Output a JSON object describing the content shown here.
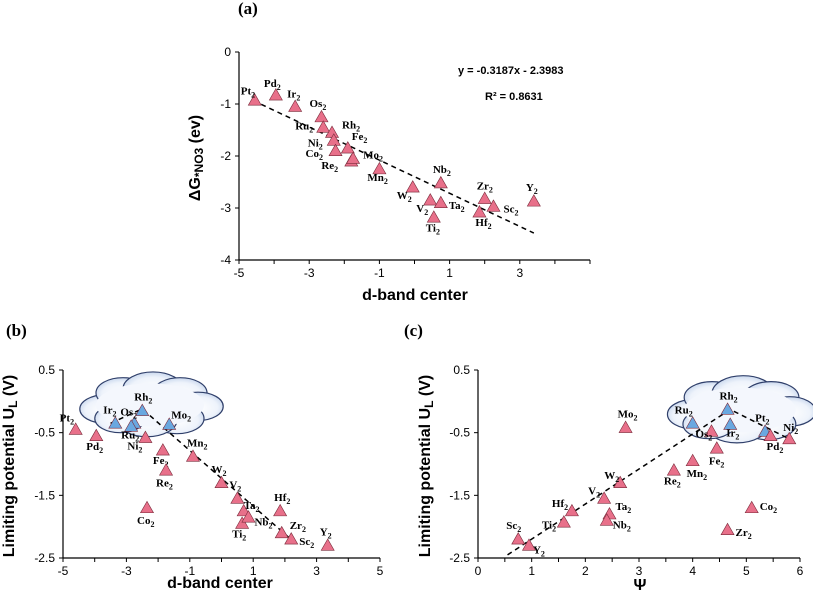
{
  "chart_data": [
    {
      "id": "a",
      "type": "scatter",
      "panel_label": "(a)",
      "title": "",
      "xlabel": "d-band center",
      "ylabel": {
        "main": "ΔG",
        "sub": "*NO3",
        "suffix": " (ev)"
      },
      "xlim": [
        -5,
        5
      ],
      "ylim": [
        -4,
        0
      ],
      "xticks": [
        -5,
        -3,
        -1,
        1,
        3
      ],
      "yticks": [
        0,
        -1,
        -2,
        -3,
        -4
      ],
      "grid": false,
      "equation": "y = -0.3187x - 2.3983",
      "r2": "R² = 0.8631",
      "trendline": {
        "slope": -0.3187,
        "intercept": -2.3983,
        "x_range": [
          -4.6,
          3.4
        ]
      },
      "marker_color": "#e8708a",
      "points": [
        {
          "label": "Pt",
          "sub": "2",
          "x": -4.55,
          "y": -0.93
        },
        {
          "label": "Pd",
          "sub": "2",
          "x": -3.95,
          "y": -0.83
        },
        {
          "label": "Ir",
          "sub": "2",
          "x": -3.4,
          "y": -1.05
        },
        {
          "label": "Os",
          "sub": "2",
          "x": -2.65,
          "y": -1.25
        },
        {
          "label": "Ru",
          "sub": "2",
          "x": -2.6,
          "y": -1.45
        },
        {
          "label": "Rh",
          "sub": "2",
          "x": -2.35,
          "y": -1.55
        },
        {
          "label": "Ni",
          "sub": "2",
          "x": -2.3,
          "y": -1.7
        },
        {
          "label": "Co",
          "sub": "2",
          "x": -2.25,
          "y": -1.9
        },
        {
          "label": "Fe",
          "sub": "2",
          "x": -1.9,
          "y": -1.85
        },
        {
          "label": "Re",
          "sub": "2",
          "x": -1.8,
          "y": -2.1
        },
        {
          "label": "Mo",
          "sub": "2",
          "x": -1.75,
          "y": -2.05
        },
        {
          "label": "Mn",
          "sub": "2",
          "x": -1.0,
          "y": -2.25
        },
        {
          "label": "W",
          "sub": "2",
          "x": -0.05,
          "y": -2.6
        },
        {
          "label": "Nb",
          "sub": "2",
          "x": 0.75,
          "y": -2.52
        },
        {
          "label": "V",
          "sub": "2",
          "x": 0.45,
          "y": -2.85
        },
        {
          "label": "Ta",
          "sub": "2",
          "x": 0.75,
          "y": -2.9
        },
        {
          "label": "Ti",
          "sub": "2",
          "x": 0.55,
          "y": -3.18
        },
        {
          "label": "Zr",
          "sub": "2",
          "x": 2.0,
          "y": -2.82
        },
        {
          "label": "Hf",
          "sub": "2",
          "x": 1.85,
          "y": -3.08
        },
        {
          "label": "Sc",
          "sub": "2",
          "x": 2.25,
          "y": -2.97
        },
        {
          "label": "Y",
          "sub": "2",
          "x": 3.4,
          "y": -2.87
        }
      ]
    },
    {
      "id": "b",
      "type": "scatter",
      "panel_label": "(b)",
      "title": "",
      "xlabel": "d-band center",
      "ylabel": {
        "main": "Limiting potential U",
        "sub": "L",
        "suffix": " (V)"
      },
      "xlim": [
        -5,
        5
      ],
      "ylim": [
        -2.5,
        0.5
      ],
      "xticks": [
        -5,
        -3,
        -1,
        1,
        3,
        5
      ],
      "yticks": [
        0.5,
        -0.5,
        -1.5,
        -2.5
      ],
      "grid": false,
      "trendline": {
        "points": [
          [
            -3.5,
            -0.35
          ],
          [
            -2.5,
            -0.12
          ],
          [
            2.3,
            -2.25
          ]
        ]
      },
      "marker_color": "#e8708a",
      "highlight_color": "#6aa8e0",
      "points": [
        {
          "label": "Pt",
          "sub": "2",
          "x": -4.6,
          "y": -0.45,
          "hl": false
        },
        {
          "label": "Pd",
          "sub": "2",
          "x": -3.95,
          "y": -0.55,
          "hl": false
        },
        {
          "label": "Ir",
          "sub": "2",
          "x": -3.35,
          "y": -0.35,
          "hl": true
        },
        {
          "label": "Os",
          "sub": "2",
          "x": -2.75,
          "y": -0.35,
          "hl": true
        },
        {
          "label": "Ru",
          "sub": "2",
          "x": -2.85,
          "y": -0.4,
          "hl": true
        },
        {
          "label": "Rh",
          "sub": "2",
          "x": -2.5,
          "y": -0.15,
          "hl": true
        },
        {
          "label": "Mo",
          "sub": "2",
          "x": -1.65,
          "y": -0.37,
          "hl": true
        },
        {
          "label": "Ni",
          "sub": "2",
          "x": -2.4,
          "y": -0.58,
          "hl": false
        },
        {
          "label": "Fe",
          "sub": "2",
          "x": -1.85,
          "y": -0.78,
          "hl": false
        },
        {
          "label": "Re",
          "sub": "2",
          "x": -1.75,
          "y": -1.1,
          "hl": false
        },
        {
          "label": "Mn",
          "sub": "2",
          "x": -0.9,
          "y": -0.88,
          "hl": false
        },
        {
          "label": "Co",
          "sub": "2",
          "x": -2.35,
          "y": -1.7,
          "hl": false
        },
        {
          "label": "W",
          "sub": "2",
          "x": 0.0,
          "y": -1.3,
          "hl": false
        },
        {
          "label": "V",
          "sub": "2",
          "x": 0.5,
          "y": -1.55,
          "hl": false
        },
        {
          "label": "Ta",
          "sub": "2",
          "x": 0.7,
          "y": -1.75,
          "hl": false
        },
        {
          "label": "Hf",
          "sub": "2",
          "x": 1.85,
          "y": -1.75,
          "hl": false
        },
        {
          "label": "Ti",
          "sub": "2",
          "x": 0.65,
          "y": -1.95,
          "hl": false
        },
        {
          "label": "Nb",
          "sub": "2",
          "x": 0.85,
          "y": -1.85,
          "hl": false
        },
        {
          "label": "Zr",
          "sub": "2",
          "x": 1.9,
          "y": -2.1,
          "hl": false
        },
        {
          "label": "Sc",
          "sub": "2",
          "x": 2.2,
          "y": -2.2,
          "hl": false
        },
        {
          "label": "Y",
          "sub": "2",
          "x": 3.35,
          "y": -2.3,
          "hl": false
        }
      ]
    },
    {
      "id": "c",
      "type": "scatter",
      "panel_label": "(c)",
      "title": "",
      "xlabel": "Ψ",
      "ylabel": {
        "main": "Limiting potential U",
        "sub": "L",
        "suffix": " (V)"
      },
      "xlim": [
        0,
        6
      ],
      "ylim": [
        -2.5,
        0.5
      ],
      "xticks": [
        0,
        1,
        2,
        3,
        4,
        5,
        6
      ],
      "yticks": [
        0.5,
        -0.5,
        -1.5,
        -2.5
      ],
      "grid": false,
      "trendline": {
        "points": [
          [
            0.55,
            -2.45
          ],
          [
            4.7,
            -0.13
          ],
          [
            5.8,
            -0.6
          ]
        ]
      },
      "marker_color": "#e8708a",
      "highlight_color": "#6aa8e0",
      "points": [
        {
          "label": "Mo",
          "sub": "2",
          "x": 2.75,
          "y": -0.42,
          "hl": false
        },
        {
          "label": "Rh",
          "sub": "2",
          "x": 4.65,
          "y": -0.13,
          "hl": true
        },
        {
          "label": "Ru",
          "sub": "2",
          "x": 4.0,
          "y": -0.35,
          "hl": true
        },
        {
          "label": "Os",
          "sub": "2",
          "x": 4.35,
          "y": -0.48,
          "hl": false
        },
        {
          "label": "Ir",
          "sub": "2",
          "x": 4.7,
          "y": -0.37,
          "hl": true
        },
        {
          "label": "Pt",
          "sub": "2",
          "x": 5.35,
          "y": -0.48,
          "hl": true
        },
        {
          "label": "Pd",
          "sub": "2",
          "x": 5.45,
          "y": -0.55,
          "hl": false
        },
        {
          "label": "Ni",
          "sub": "2",
          "x": 5.8,
          "y": -0.6,
          "hl": false
        },
        {
          "label": "Fe",
          "sub": "2",
          "x": 4.45,
          "y": -0.75,
          "hl": false
        },
        {
          "label": "Mn",
          "sub": "2",
          "x": 4.0,
          "y": -0.95,
          "hl": false
        },
        {
          "label": "Re",
          "sub": "2",
          "x": 3.65,
          "y": -1.1,
          "hl": false
        },
        {
          "label": "W",
          "sub": "2",
          "x": 2.65,
          "y": -1.3,
          "hl": false
        },
        {
          "label": "V",
          "sub": "2",
          "x": 2.35,
          "y": -1.55,
          "hl": false
        },
        {
          "label": "Co",
          "sub": "2",
          "x": 5.1,
          "y": -1.7,
          "hl": false
        },
        {
          "label": "Hf",
          "sub": "2",
          "x": 1.75,
          "y": -1.75,
          "hl": false
        },
        {
          "label": "Ta",
          "sub": "2",
          "x": 2.45,
          "y": -1.8,
          "hl": false
        },
        {
          "label": "Ti",
          "sub": "2",
          "x": 1.6,
          "y": -1.93,
          "hl": false
        },
        {
          "label": "Nb",
          "sub": "2",
          "x": 2.4,
          "y": -1.9,
          "hl": false
        },
        {
          "label": "Zr",
          "sub": "2",
          "x": 4.65,
          "y": -2.05,
          "hl": false
        },
        {
          "label": "Sc",
          "sub": "2",
          "x": 0.75,
          "y": -2.2,
          "hl": false
        },
        {
          "label": "Y",
          "sub": "2",
          "x": 0.95,
          "y": -2.3,
          "hl": false
        }
      ]
    }
  ]
}
